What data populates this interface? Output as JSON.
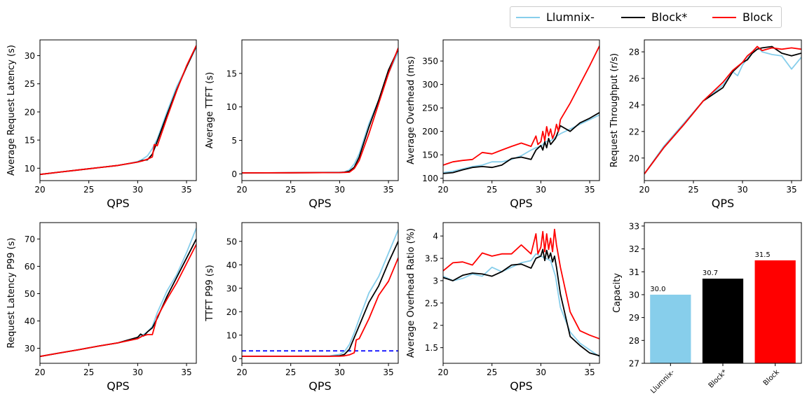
{
  "legend": {
    "items": [
      {
        "label": "Llumnix-",
        "color": "#87CEEB"
      },
      {
        "label": "Block*",
        "color": "#000000"
      },
      {
        "label": "Block",
        "color": "#FF0000"
      }
    ]
  },
  "chart_data": [
    {
      "type": "line",
      "ylabel": "Average Request Latency (s)",
      "xlabel": "QPS",
      "xlim": [
        20,
        36
      ],
      "xticks": [
        20,
        25,
        30,
        35
      ],
      "ylim": [
        7.8,
        32.8
      ],
      "yticks": [
        10,
        15,
        20,
        25,
        30
      ],
      "series": [
        {
          "name": "Llumnix-",
          "color": "#87CEEB",
          "x": [
            20,
            22,
            24,
            26,
            28,
            29,
            30,
            30.5,
            31,
            31.5,
            32,
            33,
            34,
            35,
            36
          ],
          "y": [
            8.9,
            9.3,
            9.7,
            10.1,
            10.5,
            10.8,
            11.2,
            11.6,
            12.2,
            13.5,
            15.2,
            20.0,
            24.5,
            28.0,
            31.5
          ]
        },
        {
          "name": "Block*",
          "color": "#000000",
          "x": [
            20,
            22,
            24,
            26,
            28,
            29,
            30,
            30.5,
            31,
            31.5,
            32,
            33,
            34,
            35,
            36
          ],
          "y": [
            8.9,
            9.3,
            9.7,
            10.1,
            10.5,
            10.8,
            11.1,
            11.4,
            11.5,
            12.5,
            14.8,
            19.5,
            24.0,
            28.0,
            31.7
          ]
        },
        {
          "name": "Block",
          "color": "#FF0000",
          "x": [
            20,
            22,
            24,
            26,
            28,
            29,
            30,
            30.5,
            31,
            31.5,
            31.7,
            32,
            33,
            34,
            35,
            36
          ],
          "y": [
            8.9,
            9.3,
            9.7,
            10.1,
            10.5,
            10.8,
            11.1,
            11.3,
            11.6,
            12.0,
            14.2,
            14.0,
            19.0,
            23.8,
            28.2,
            31.8
          ]
        }
      ]
    },
    {
      "type": "line",
      "ylabel": "Average TTFT (s)",
      "xlabel": "QPS",
      "xlim": [
        20,
        36
      ],
      "xticks": [
        20,
        25,
        30,
        35
      ],
      "ylim": [
        -1,
        20
      ],
      "yticks": [
        0,
        5,
        10,
        15
      ],
      "series": [
        {
          "name": "Llumnix-",
          "color": "#87CEEB",
          "x": [
            20,
            25,
            30,
            30.5,
            31,
            31.5,
            32,
            33,
            34,
            35,
            36
          ],
          "y": [
            0.15,
            0.18,
            0.25,
            0.3,
            0.6,
            1.5,
            3.0,
            7.5,
            11.0,
            15.0,
            18.2
          ]
        },
        {
          "name": "Block*",
          "color": "#000000",
          "x": [
            20,
            25,
            30,
            30.5,
            31,
            31.5,
            32,
            33,
            34,
            35,
            36
          ],
          "y": [
            0.15,
            0.17,
            0.2,
            0.25,
            0.4,
            1.0,
            2.5,
            7.0,
            11.0,
            15.5,
            18.6
          ]
        },
        {
          "name": "Block",
          "color": "#FF0000",
          "x": [
            20,
            25,
            30,
            30.5,
            31,
            31.5,
            32,
            33,
            34,
            35,
            36
          ],
          "y": [
            0.15,
            0.17,
            0.2,
            0.22,
            0.25,
            0.8,
            2.0,
            6.0,
            10.5,
            15.0,
            18.8
          ]
        }
      ]
    },
    {
      "type": "line",
      "ylabel": "Average Overhead (ms)",
      "xlabel": "QPS",
      "xlim": [
        20,
        36
      ],
      "xticks": [
        20,
        25,
        30,
        35
      ],
      "ylim": [
        95,
        395
      ],
      "yticks": [
        100,
        150,
        200,
        250,
        300,
        350
      ],
      "series": [
        {
          "name": "Llumnix-",
          "color": "#87CEEB",
          "x": [
            20,
            21,
            22,
            23,
            24,
            25,
            26,
            27,
            28,
            29,
            29.5,
            30,
            30.5,
            31,
            31.5,
            32,
            33,
            34,
            35,
            36
          ],
          "y": [
            112,
            115,
            120,
            125,
            128,
            135,
            135,
            140,
            148,
            160,
            165,
            168,
            178,
            180,
            188,
            195,
            205,
            215,
            225,
            235
          ]
        },
        {
          "name": "Block*",
          "color": "#000000",
          "x": [
            20,
            21,
            22,
            23,
            24,
            25,
            26,
            27,
            28,
            29,
            29.5,
            30,
            30.2,
            30.4,
            30.6,
            30.8,
            31,
            31.5,
            32,
            33,
            34,
            35,
            36
          ],
          "y": [
            110,
            112,
            118,
            123,
            125,
            123,
            128,
            142,
            145,
            140,
            160,
            170,
            160,
            178,
            165,
            185,
            172,
            185,
            212,
            200,
            218,
            228,
            240
          ]
        },
        {
          "name": "Block",
          "color": "#FF0000",
          "x": [
            20,
            21,
            22,
            23,
            24,
            25,
            26,
            27,
            28,
            29,
            29.5,
            29.7,
            30,
            30.2,
            30.4,
            30.6,
            30.8,
            31,
            31.2,
            31.4,
            31.6,
            31.8,
            32,
            33,
            34,
            35,
            36
          ],
          "y": [
            128,
            135,
            138,
            140,
            155,
            152,
            160,
            168,
            175,
            168,
            190,
            172,
            178,
            200,
            180,
            210,
            190,
            205,
            185,
            195,
            215,
            200,
            225,
            260,
            300,
            340,
            382
          ]
        }
      ]
    },
    {
      "type": "line",
      "ylabel": "Request Throughput (r/s)",
      "xlabel": "QPS",
      "xlim": [
        20,
        36
      ],
      "xticks": [
        20,
        25,
        30,
        35
      ],
      "ylim": [
        18.3,
        28.9
      ],
      "yticks": [
        20,
        22,
        24,
        26,
        28
      ],
      "series": [
        {
          "name": "Llumnix-",
          "color": "#87CEEB",
          "x": [
            20,
            22,
            24,
            26,
            28,
            29,
            29.5,
            30,
            30.5,
            31,
            31.5,
            32,
            33,
            34,
            35,
            36
          ],
          "y": [
            18.8,
            20.9,
            22.6,
            24.3,
            25.5,
            26.5,
            26.2,
            27.0,
            27.5,
            28.0,
            28.4,
            28.0,
            27.8,
            27.7,
            26.7,
            27.6
          ]
        },
        {
          "name": "Block*",
          "color": "#000000",
          "x": [
            20,
            22,
            24,
            26,
            28,
            29,
            30,
            30.5,
            31,
            31.5,
            32,
            33,
            34,
            35,
            36
          ],
          "y": [
            18.8,
            20.8,
            22.5,
            24.3,
            25.3,
            26.5,
            27.2,
            27.4,
            27.9,
            28.2,
            28.3,
            28.4,
            27.9,
            27.7,
            27.9
          ]
        },
        {
          "name": "Block",
          "color": "#FF0000",
          "x": [
            20,
            22,
            24,
            26,
            28,
            29,
            30,
            30.5,
            31,
            31.5,
            32,
            33,
            34,
            35,
            36
          ],
          "y": [
            18.8,
            20.8,
            22.5,
            24.3,
            25.7,
            26.6,
            27.2,
            27.7,
            28.0,
            28.4,
            28.1,
            28.3,
            28.2,
            28.3,
            28.2
          ]
        }
      ]
    },
    {
      "type": "line",
      "ylabel": "Request Latency P99 (s)",
      "xlabel": "QPS",
      "xlim": [
        20,
        36
      ],
      "xticks": [
        20,
        25,
        30,
        35
      ],
      "ylim": [
        24.5,
        76
      ],
      "yticks": [
        30,
        40,
        50,
        60,
        70
      ],
      "series": [
        {
          "name": "Llumnix-",
          "color": "#87CEEB",
          "x": [
            20,
            22,
            24,
            26,
            28,
            30,
            30.5,
            31,
            31.5,
            32,
            33,
            34,
            35,
            36
          ],
          "y": [
            27.0,
            28.3,
            29.5,
            30.8,
            32.0,
            34.0,
            34.8,
            36.0,
            38.0,
            43.0,
            51.0,
            57.0,
            65.0,
            74.0
          ]
        },
        {
          "name": "Block*",
          "color": "#000000",
          "x": [
            20,
            22,
            24,
            26,
            28,
            30,
            30.3,
            30.6,
            31,
            31.5,
            32,
            33,
            34,
            35,
            36
          ],
          "y": [
            27.0,
            28.3,
            29.5,
            30.8,
            32.0,
            34.0,
            35.2,
            34.5,
            36.0,
            37.5,
            41.0,
            49.0,
            56.0,
            63.0,
            70.0
          ]
        },
        {
          "name": "Block",
          "color": "#FF0000",
          "x": [
            20,
            22,
            24,
            26,
            28,
            30,
            30.5,
            31,
            31.5,
            32,
            33,
            34,
            35,
            36
          ],
          "y": [
            27.0,
            28.3,
            29.5,
            30.8,
            32.0,
            33.5,
            34.5,
            35.0,
            35.0,
            41.5,
            48.0,
            54.0,
            61.0,
            68.0
          ]
        }
      ]
    },
    {
      "type": "line",
      "ylabel": "TTFT P99 (s)",
      "xlabel": "QPS",
      "xlim": [
        20,
        36
      ],
      "xticks": [
        20,
        25,
        30,
        35
      ],
      "ylim": [
        -2,
        58
      ],
      "yticks": [
        0,
        10,
        20,
        30,
        40,
        50
      ],
      "hline": {
        "y": 3.3,
        "color": "#0000FF",
        "style": "dashed"
      },
      "series": [
        {
          "name": "Llumnix-",
          "color": "#87CEEB",
          "x": [
            20,
            25,
            29,
            30,
            30.5,
            31,
            31.5,
            32,
            33,
            34,
            35,
            36
          ],
          "y": [
            1.0,
            1.0,
            1.2,
            1.8,
            3.0,
            6.0,
            11.0,
            17.0,
            28.0,
            35.0,
            45.0,
            55.0
          ]
        },
        {
          "name": "Block*",
          "color": "#000000",
          "x": [
            20,
            25,
            29,
            30,
            30.5,
            31,
            31.5,
            32,
            33,
            34,
            35,
            36
          ],
          "y": [
            1.0,
            1.0,
            1.0,
            1.2,
            1.8,
            4.0,
            9.0,
            14.0,
            24.0,
            31.0,
            41.0,
            50.0
          ]
        },
        {
          "name": "Block",
          "color": "#FF0000",
          "x": [
            20,
            25,
            29,
            30,
            30.5,
            31,
            31.5,
            31.7,
            32,
            33,
            34,
            35,
            36
          ],
          "y": [
            1.0,
            1.0,
            1.0,
            1.0,
            1.2,
            1.6,
            2.5,
            8.0,
            8.5,
            17.0,
            27.0,
            33.0,
            43.0
          ]
        }
      ]
    },
    {
      "type": "line",
      "ylabel": "Average Overhead Ratio (%)",
      "xlabel": "QPS",
      "xlim": [
        20,
        36
      ],
      "xticks": [
        20,
        25,
        30,
        35
      ],
      "ylim": [
        1.15,
        4.3
      ],
      "yticks": [
        1.5,
        2.0,
        2.5,
        3.0,
        3.5,
        4.0
      ],
      "series": [
        {
          "name": "Llumnix-",
          "color": "#87CEEB",
          "x": [
            20,
            21,
            22,
            23,
            24,
            25,
            26,
            27,
            28,
            29,
            29.5,
            30,
            30.5,
            31,
            31.5,
            32,
            33,
            34,
            35,
            36
          ],
          "y": [
            3.1,
            3.0,
            3.05,
            3.15,
            3.1,
            3.3,
            3.2,
            3.3,
            3.4,
            3.45,
            3.6,
            3.55,
            3.5,
            3.45,
            3.1,
            2.4,
            1.85,
            1.6,
            1.45,
            1.3
          ]
        },
        {
          "name": "Block*",
          "color": "#000000",
          "x": [
            20,
            21,
            22,
            23,
            24,
            25,
            26,
            27,
            28,
            29,
            29.5,
            30,
            30.2,
            30.4,
            30.6,
            30.8,
            31,
            31.2,
            31.4,
            31.6,
            32,
            33,
            34,
            35,
            36
          ],
          "y": [
            3.07,
            3.0,
            3.12,
            3.17,
            3.15,
            3.1,
            3.2,
            3.35,
            3.37,
            3.28,
            3.5,
            3.55,
            3.7,
            3.45,
            3.68,
            3.5,
            3.62,
            3.42,
            3.55,
            3.3,
            2.7,
            1.75,
            1.55,
            1.38,
            1.32
          ]
        },
        {
          "name": "Block",
          "color": "#FF0000",
          "x": [
            20,
            21,
            22,
            23,
            24,
            25,
            26,
            27,
            28,
            29,
            29.5,
            29.7,
            30,
            30.2,
            30.4,
            30.6,
            30.8,
            31,
            31.2,
            31.4,
            31.6,
            32,
            33,
            34,
            35,
            36
          ],
          "y": [
            3.22,
            3.4,
            3.42,
            3.35,
            3.62,
            3.55,
            3.6,
            3.6,
            3.8,
            3.6,
            4.05,
            3.6,
            3.75,
            4.1,
            3.65,
            4.05,
            3.7,
            3.95,
            3.65,
            4.15,
            3.8,
            3.3,
            2.3,
            1.88,
            1.78,
            1.7
          ]
        }
      ]
    },
    {
      "type": "bar",
      "ylabel": "Capacity",
      "categories": [
        "Llumnix-",
        "Block*",
        "Block"
      ],
      "values": [
        30.0,
        30.7,
        31.5
      ],
      "value_labels": [
        "30.0",
        "30.7",
        "31.5"
      ],
      "colors": [
        "#87CEEB",
        "#000000",
        "#FF0000"
      ],
      "ylim": [
        27,
        33.15
      ],
      "yticks": [
        27,
        28,
        29,
        30,
        31,
        32,
        33
      ]
    }
  ]
}
